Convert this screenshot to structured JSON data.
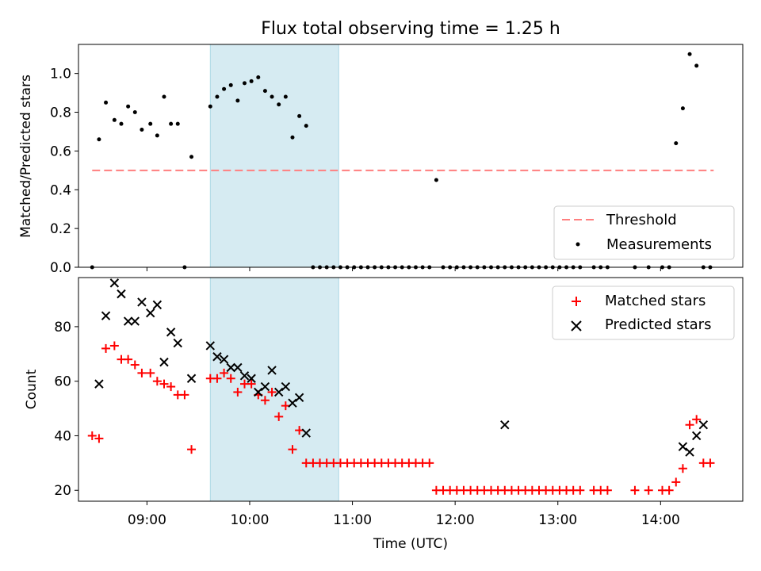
{
  "chart_data": [
    {
      "type": "scatter",
      "title": "Flux total observing time = 1.25 h",
      "xlabel": "",
      "ylabel": "Matched/Predicted stars",
      "xlim": [
        "08:20",
        "14:48"
      ],
      "ylim": [
        0,
        1.15
      ],
      "yticks": [
        "0.0",
        "0.2",
        "0.4",
        "0.6",
        "0.8",
        "1.0"
      ],
      "shaded_interval": [
        "09:37",
        "10:52"
      ],
      "legend_position": "lower-right",
      "threshold": {
        "name": "Threshold",
        "value": 0.5,
        "x_range": [
          "08:28",
          "14:31"
        ],
        "color": "#ff7f7f"
      },
      "series": [
        {
          "name": "Measurements",
          "color": "#000000",
          "marker": "dot",
          "x": [
            "08:28",
            "08:32",
            "08:36",
            "08:41",
            "08:45",
            "08:49",
            "08:53",
            "08:57",
            "09:02",
            "09:06",
            "09:10",
            "09:14",
            "09:18",
            "09:22",
            "09:26",
            "09:37",
            "09:41",
            "09:45",
            "09:49",
            "09:53",
            "09:57",
            "10:01",
            "10:05",
            "10:09",
            "10:13",
            "10:17",
            "10:21",
            "10:25",
            "10:29",
            "10:33",
            "10:37",
            "10:41",
            "10:45",
            "10:49",
            "10:53",
            "10:57",
            "11:01",
            "11:05",
            "11:09",
            "11:13",
            "11:17",
            "11:21",
            "11:25",
            "11:29",
            "11:33",
            "11:37",
            "11:41",
            "11:45",
            "11:49",
            "11:53",
            "11:57",
            "12:01",
            "12:05",
            "12:09",
            "12:13",
            "12:17",
            "12:21",
            "12:25",
            "12:29",
            "12:33",
            "12:37",
            "12:41",
            "12:45",
            "12:49",
            "12:53",
            "12:57",
            "13:01",
            "13:05",
            "13:09",
            "13:13",
            "13:21",
            "13:25",
            "13:29",
            "13:45",
            "13:53",
            "14:01",
            "14:05",
            "14:09",
            "14:13",
            "14:17",
            "14:21",
            "14:25",
            "14:29"
          ],
          "y": [
            0,
            0.66,
            0.85,
            0.76,
            0.74,
            0.83,
            0.8,
            0.71,
            0.74,
            0.68,
            0.88,
            0.74,
            0.74,
            0,
            0.57,
            0.83,
            0.88,
            0.92,
            0.94,
            0.86,
            0.95,
            0.96,
            0.98,
            0.91,
            0.88,
            0.84,
            0.88,
            0.67,
            0.78,
            0.73,
            0,
            0,
            0,
            0,
            0,
            0,
            0,
            0,
            0,
            0,
            0,
            0,
            0,
            0,
            0,
            0,
            0,
            0,
            0.45,
            0,
            0,
            0,
            0,
            0,
            0,
            0,
            0,
            0,
            0,
            0,
            0,
            0,
            0,
            0,
            0,
            0,
            0,
            0,
            0,
            0,
            0,
            0,
            0,
            0,
            0,
            0,
            0,
            0.64,
            0.82,
            1.1,
            1.04,
            0,
            0
          ]
        }
      ]
    },
    {
      "type": "scatter",
      "title": "",
      "xlabel": "Time (UTC)",
      "ylabel": "Count",
      "xlim": [
        "08:20",
        "14:48"
      ],
      "ylim": [
        16,
        98
      ],
      "yticks": [
        "20",
        "40",
        "60",
        "80"
      ],
      "xticks": [
        "09:00",
        "10:00",
        "11:00",
        "12:00",
        "13:00",
        "14:00"
      ],
      "shaded_interval": [
        "09:37",
        "10:52"
      ],
      "legend_position": "upper-right",
      "series": [
        {
          "name": "Matched stars",
          "color": "#ff0000",
          "marker": "plus",
          "x": [
            "08:28",
            "08:32",
            "08:36",
            "08:41",
            "08:45",
            "08:49",
            "08:53",
            "08:57",
            "09:02",
            "09:06",
            "09:10",
            "09:14",
            "09:18",
            "09:22",
            "09:26",
            "09:37",
            "09:41",
            "09:45",
            "09:49",
            "09:53",
            "09:57",
            "10:01",
            "10:05",
            "10:09",
            "10:13",
            "10:17",
            "10:21",
            "10:25",
            "10:29",
            "10:33",
            "10:37",
            "10:41",
            "10:45",
            "10:49",
            "10:53",
            "10:57",
            "11:01",
            "11:05",
            "11:09",
            "11:13",
            "11:17",
            "11:21",
            "11:25",
            "11:29",
            "11:33",
            "11:37",
            "11:41",
            "11:45",
            "11:49",
            "11:53",
            "11:57",
            "12:01",
            "12:05",
            "12:09",
            "12:13",
            "12:17",
            "12:21",
            "12:25",
            "12:29",
            "12:33",
            "12:37",
            "12:41",
            "12:45",
            "12:49",
            "12:53",
            "12:57",
            "13:01",
            "13:05",
            "13:09",
            "13:13",
            "13:21",
            "13:25",
            "13:29",
            "13:45",
            "13:53",
            "14:01",
            "14:05",
            "14:09",
            "14:13",
            "14:17",
            "14:21",
            "14:25",
            "14:29"
          ],
          "y": [
            40,
            39,
            72,
            73,
            68,
            68,
            66,
            63,
            63,
            60,
            59,
            58,
            55,
            55,
            35,
            61,
            61,
            63,
            61,
            56,
            59,
            59,
            55,
            53,
            56,
            47,
            51,
            35,
            42,
            30,
            30,
            30,
            30,
            30,
            30,
            30,
            30,
            30,
            30,
            30,
            30,
            30,
            30,
            30,
            30,
            30,
            30,
            30,
            20,
            20,
            20,
            20,
            20,
            20,
            20,
            20,
            20,
            20,
            20,
            20,
            20,
            20,
            20,
            20,
            20,
            20,
            20,
            20,
            20,
            20,
            20,
            20,
            20,
            20,
            20,
            20,
            20,
            23,
            28,
            44,
            46,
            30,
            30
          ]
        },
        {
          "name": "Predicted stars",
          "color": "#000000",
          "marker": "x",
          "x": [
            "08:32",
            "08:36",
            "08:41",
            "08:45",
            "08:49",
            "08:53",
            "08:57",
            "09:02",
            "09:06",
            "09:10",
            "09:14",
            "09:18",
            "09:26",
            "09:37",
            "09:41",
            "09:45",
            "09:49",
            "09:53",
            "09:57",
            "10:01",
            "10:05",
            "10:09",
            "10:13",
            "10:17",
            "10:21",
            "10:25",
            "10:29",
            "10:33",
            "12:29",
            "14:13",
            "14:17",
            "14:21",
            "14:25"
          ],
          "y": [
            59,
            84,
            96,
            92,
            82,
            82,
            89,
            85,
            88,
            67,
            78,
            74,
            61,
            73,
            69,
            68,
            65,
            65,
            62,
            61,
            56,
            58,
            64,
            56,
            58,
            52,
            54,
            41,
            44,
            36,
            34,
            40,
            44
          ]
        }
      ]
    }
  ]
}
